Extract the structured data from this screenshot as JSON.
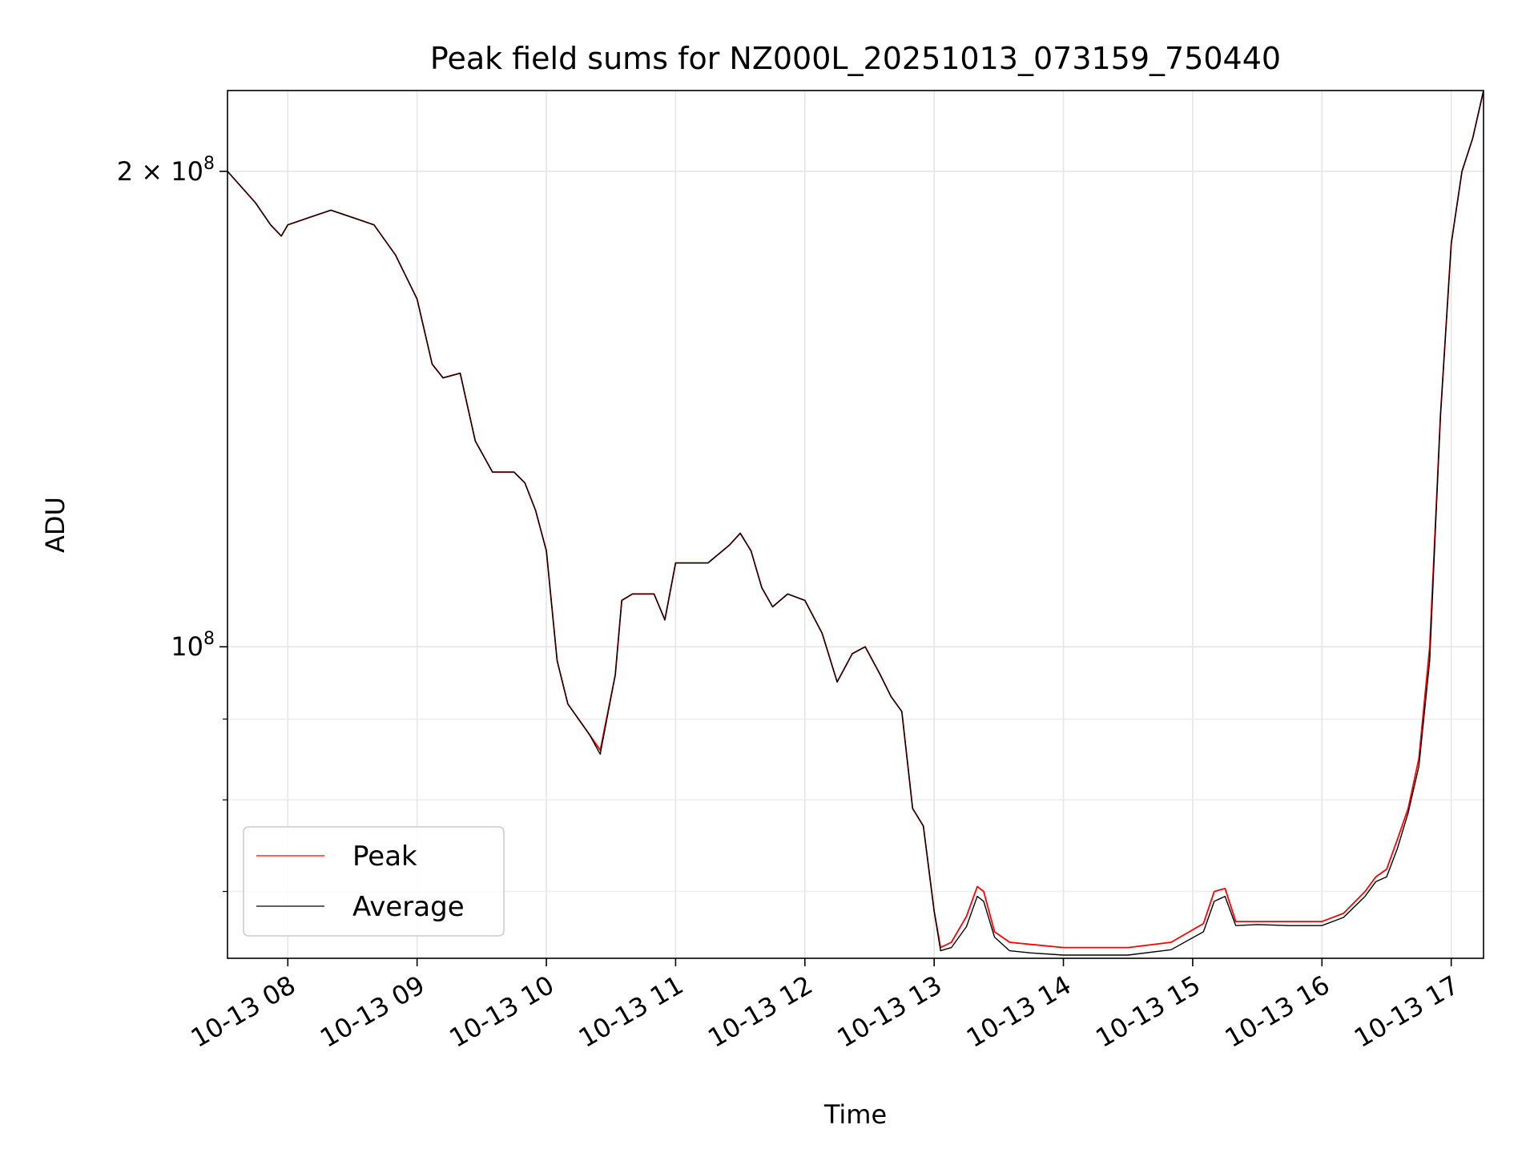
{
  "chart_data": {
    "type": "line",
    "title": "Peak field sums for NZ000L_20251013_073159_750440",
    "xlabel": "Time",
    "ylabel": "ADU",
    "yscale": "log",
    "xlim": [
      "2025-10-13 07:32",
      "2025-10-13 17:15"
    ],
    "ylim": [
      63500000,
      225000000
    ],
    "x_ticks": [
      {
        "value": "2025-10-13 08:00",
        "label": "10-13 08"
      },
      {
        "value": "2025-10-13 09:00",
        "label": "10-13 09"
      },
      {
        "value": "2025-10-13 10:00",
        "label": "10-13 10"
      },
      {
        "value": "2025-10-13 11:00",
        "label": "10-13 11"
      },
      {
        "value": "2025-10-13 12:00",
        "label": "10-13 12"
      },
      {
        "value": "2025-10-13 13:00",
        "label": "10-13 13"
      },
      {
        "value": "2025-10-13 14:00",
        "label": "10-13 14"
      },
      {
        "value": "2025-10-13 15:00",
        "label": "10-13 15"
      },
      {
        "value": "2025-10-13 16:00",
        "label": "10-13 16"
      },
      {
        "value": "2025-10-13 17:00",
        "label": "10-13 17"
      }
    ],
    "y_major_ticks": [
      {
        "value": 100000000,
        "base": "10",
        "exp": "8"
      },
      {
        "value": 200000000,
        "base": "2 × 10",
        "exp": "8"
      }
    ],
    "y_minor_ticks": [
      70000000,
      80000000,
      90000000
    ],
    "grid": true,
    "legend_position": "lower-left",
    "series": [
      {
        "name": "Peak",
        "color": "#ff0000",
        "x": [
          "2025-10-13 07:32",
          "2025-10-13 07:45",
          "2025-10-13 07:52",
          "2025-10-13 07:57",
          "2025-10-13 08:00",
          "2025-10-13 08:10",
          "2025-10-13 08:20",
          "2025-10-13 08:30",
          "2025-10-13 08:40",
          "2025-10-13 08:50",
          "2025-10-13 09:00",
          "2025-10-13 09:07",
          "2025-10-13 09:12",
          "2025-10-13 09:20",
          "2025-10-13 09:27",
          "2025-10-13 09:35",
          "2025-10-13 09:45",
          "2025-10-13 09:50",
          "2025-10-13 09:55",
          "2025-10-13 10:00",
          "2025-10-13 10:05",
          "2025-10-13 10:10",
          "2025-10-13 10:20",
          "2025-10-13 10:25",
          "2025-10-13 10:32",
          "2025-10-13 10:35",
          "2025-10-13 10:40",
          "2025-10-13 10:50",
          "2025-10-13 10:55",
          "2025-10-13 11:00",
          "2025-10-13 11:15",
          "2025-10-13 11:25",
          "2025-10-13 11:30",
          "2025-10-13 11:35",
          "2025-10-13 11:40",
          "2025-10-13 11:45",
          "2025-10-13 11:52",
          "2025-10-13 12:00",
          "2025-10-13 12:08",
          "2025-10-13 12:15",
          "2025-10-13 12:22",
          "2025-10-13 12:28",
          "2025-10-13 12:35",
          "2025-10-13 12:40",
          "2025-10-13 12:45",
          "2025-10-13 12:50",
          "2025-10-13 12:55",
          "2025-10-13 13:00",
          "2025-10-13 13:03",
          "2025-10-13 13:08",
          "2025-10-13 13:15",
          "2025-10-13 13:20",
          "2025-10-13 13:23",
          "2025-10-13 13:28",
          "2025-10-13 13:35",
          "2025-10-13 13:45",
          "2025-10-13 14:00",
          "2025-10-13 14:30",
          "2025-10-13 14:50",
          "2025-10-13 15:05",
          "2025-10-13 15:10",
          "2025-10-13 15:15",
          "2025-10-13 15:20",
          "2025-10-13 15:30",
          "2025-10-13 15:45",
          "2025-10-13 16:00",
          "2025-10-13 16:10",
          "2025-10-13 16:20",
          "2025-10-13 16:25",
          "2025-10-13 16:30",
          "2025-10-13 16:35",
          "2025-10-13 16:40",
          "2025-10-13 16:45",
          "2025-10-13 16:50",
          "2025-10-13 16:55",
          "2025-10-13 17:00",
          "2025-10-13 17:05",
          "2025-10-13 17:10",
          "2025-10-13 17:15"
        ],
        "y": [
          200000000,
          191000000,
          185000000,
          182000000,
          185000000,
          187000000,
          189000000,
          187000000,
          185000000,
          177000000,
          166000000,
          151000000,
          148000000,
          149000000,
          135000000,
          129000000,
          129000000,
          127000000,
          122000000,
          115000000,
          98000000,
          92000000,
          88000000,
          86000000,
          96000000,
          107000000,
          108000000,
          108000000,
          104000000,
          113000000,
          113000000,
          116000000,
          118000000,
          115000000,
          109000000,
          106000000,
          108000000,
          107000000,
          102000000,
          95000000,
          99000000,
          100000000,
          96000000,
          93000000,
          91000000,
          79000000,
          77000000,
          68000000,
          64500000,
          65000000,
          67500000,
          70500000,
          70000000,
          66000000,
          65000000,
          64800000,
          64500000,
          64500000,
          65000000,
          66800000,
          70000000,
          70300000,
          67000000,
          67000000,
          67000000,
          67000000,
          67800000,
          70000000,
          71500000,
          72300000,
          75500000,
          79000000,
          85000000,
          100000000,
          140000000,
          180000000,
          200000000,
          210000000,
          225000000
        ]
      },
      {
        "name": "Average",
        "color": "#000000",
        "x": [
          "2025-10-13 07:32",
          "2025-10-13 07:45",
          "2025-10-13 07:52",
          "2025-10-13 07:57",
          "2025-10-13 08:00",
          "2025-10-13 08:10",
          "2025-10-13 08:20",
          "2025-10-13 08:30",
          "2025-10-13 08:40",
          "2025-10-13 08:50",
          "2025-10-13 09:00",
          "2025-10-13 09:07",
          "2025-10-13 09:12",
          "2025-10-13 09:20",
          "2025-10-13 09:27",
          "2025-10-13 09:35",
          "2025-10-13 09:45",
          "2025-10-13 09:50",
          "2025-10-13 09:55",
          "2025-10-13 10:00",
          "2025-10-13 10:05",
          "2025-10-13 10:10",
          "2025-10-13 10:20",
          "2025-10-13 10:25",
          "2025-10-13 10:32",
          "2025-10-13 10:35",
          "2025-10-13 10:40",
          "2025-10-13 10:50",
          "2025-10-13 10:55",
          "2025-10-13 11:00",
          "2025-10-13 11:15",
          "2025-10-13 11:25",
          "2025-10-13 11:30",
          "2025-10-13 11:35",
          "2025-10-13 11:40",
          "2025-10-13 11:45",
          "2025-10-13 11:52",
          "2025-10-13 12:00",
          "2025-10-13 12:08",
          "2025-10-13 12:15",
          "2025-10-13 12:22",
          "2025-10-13 12:28",
          "2025-10-13 12:35",
          "2025-10-13 12:40",
          "2025-10-13 12:45",
          "2025-10-13 12:50",
          "2025-10-13 12:55",
          "2025-10-13 13:00",
          "2025-10-13 13:03",
          "2025-10-13 13:08",
          "2025-10-13 13:15",
          "2025-10-13 13:20",
          "2025-10-13 13:23",
          "2025-10-13 13:28",
          "2025-10-13 13:35",
          "2025-10-13 13:45",
          "2025-10-13 14:00",
          "2025-10-13 14:30",
          "2025-10-13 14:50",
          "2025-10-13 15:05",
          "2025-10-13 15:10",
          "2025-10-13 15:15",
          "2025-10-13 15:20",
          "2025-10-13 15:30",
          "2025-10-13 15:45",
          "2025-10-13 16:00",
          "2025-10-13 16:10",
          "2025-10-13 16:20",
          "2025-10-13 16:25",
          "2025-10-13 16:30",
          "2025-10-13 16:35",
          "2025-10-13 16:40",
          "2025-10-13 16:45",
          "2025-10-13 16:50",
          "2025-10-13 16:55",
          "2025-10-13 17:00",
          "2025-10-13 17:05",
          "2025-10-13 17:10",
          "2025-10-13 17:15"
        ],
        "y": [
          200000000,
          191000000,
          185000000,
          182000000,
          185000000,
          187000000,
          189000000,
          187000000,
          185000000,
          177000000,
          166000000,
          151000000,
          148000000,
          149000000,
          135000000,
          129000000,
          129000000,
          127000000,
          122000000,
          115000000,
          98000000,
          92000000,
          88000000,
          85500000,
          96000000,
          107000000,
          108000000,
          108000000,
          104000000,
          113000000,
          113000000,
          116000000,
          118000000,
          115000000,
          109000000,
          106000000,
          108000000,
          107000000,
          102000000,
          95000000,
          99000000,
          100000000,
          96000000,
          93000000,
          91000000,
          79000000,
          77000000,
          68000000,
          64200000,
          64500000,
          66500000,
          69500000,
          69000000,
          65500000,
          64200000,
          64000000,
          63800000,
          63800000,
          64300000,
          66000000,
          69000000,
          69500000,
          66600000,
          66700000,
          66600000,
          66600000,
          67400000,
          69500000,
          71000000,
          71500000,
          74500000,
          78500000,
          84000000,
          98000000,
          140000000,
          180000000,
          200000000,
          210000000,
          225000000
        ]
      }
    ]
  }
}
